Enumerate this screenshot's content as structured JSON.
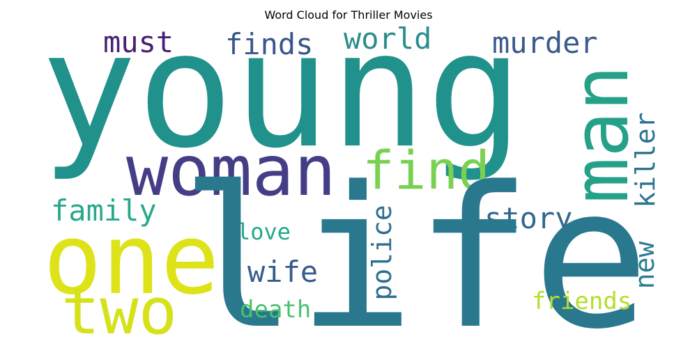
{
  "title": "Word Cloud for Thriller Movies",
  "words": {
    "young": {
      "text": "young",
      "color": "#21918c"
    },
    "life": {
      "text": "life",
      "color": "#2a788e"
    },
    "woman": {
      "text": "woman",
      "color": "#433e85"
    },
    "man": {
      "text": "man",
      "color": "#25a189"
    },
    "one": {
      "text": "one",
      "color": "#dde318"
    },
    "two": {
      "text": "two",
      "color": "#d5e21a"
    },
    "find": {
      "text": "find",
      "color": "#7ad151"
    },
    "must": {
      "text": "must",
      "color": "#482173"
    },
    "finds": {
      "text": "finds",
      "color": "#39558c"
    },
    "world": {
      "text": "world",
      "color": "#2a8e8c"
    },
    "murder": {
      "text": "murder",
      "color": "#3b5a8c"
    },
    "killer": {
      "text": "killer",
      "color": "#2c738e"
    },
    "family": {
      "text": "family",
      "color": "#29a98a"
    },
    "story": {
      "text": "story",
      "color": "#31688e"
    },
    "love": {
      "text": "love",
      "color": "#24a88a"
    },
    "police": {
      "text": "police",
      "color": "#2e6e8e"
    },
    "new": {
      "text": "new",
      "color": "#2a7c8e"
    },
    "wife": {
      "text": "wife",
      "color": "#365c8d"
    },
    "death": {
      "text": "death",
      "color": "#4ac16d"
    },
    "friends": {
      "text": "friends",
      "color": "#b5de2b"
    }
  }
}
